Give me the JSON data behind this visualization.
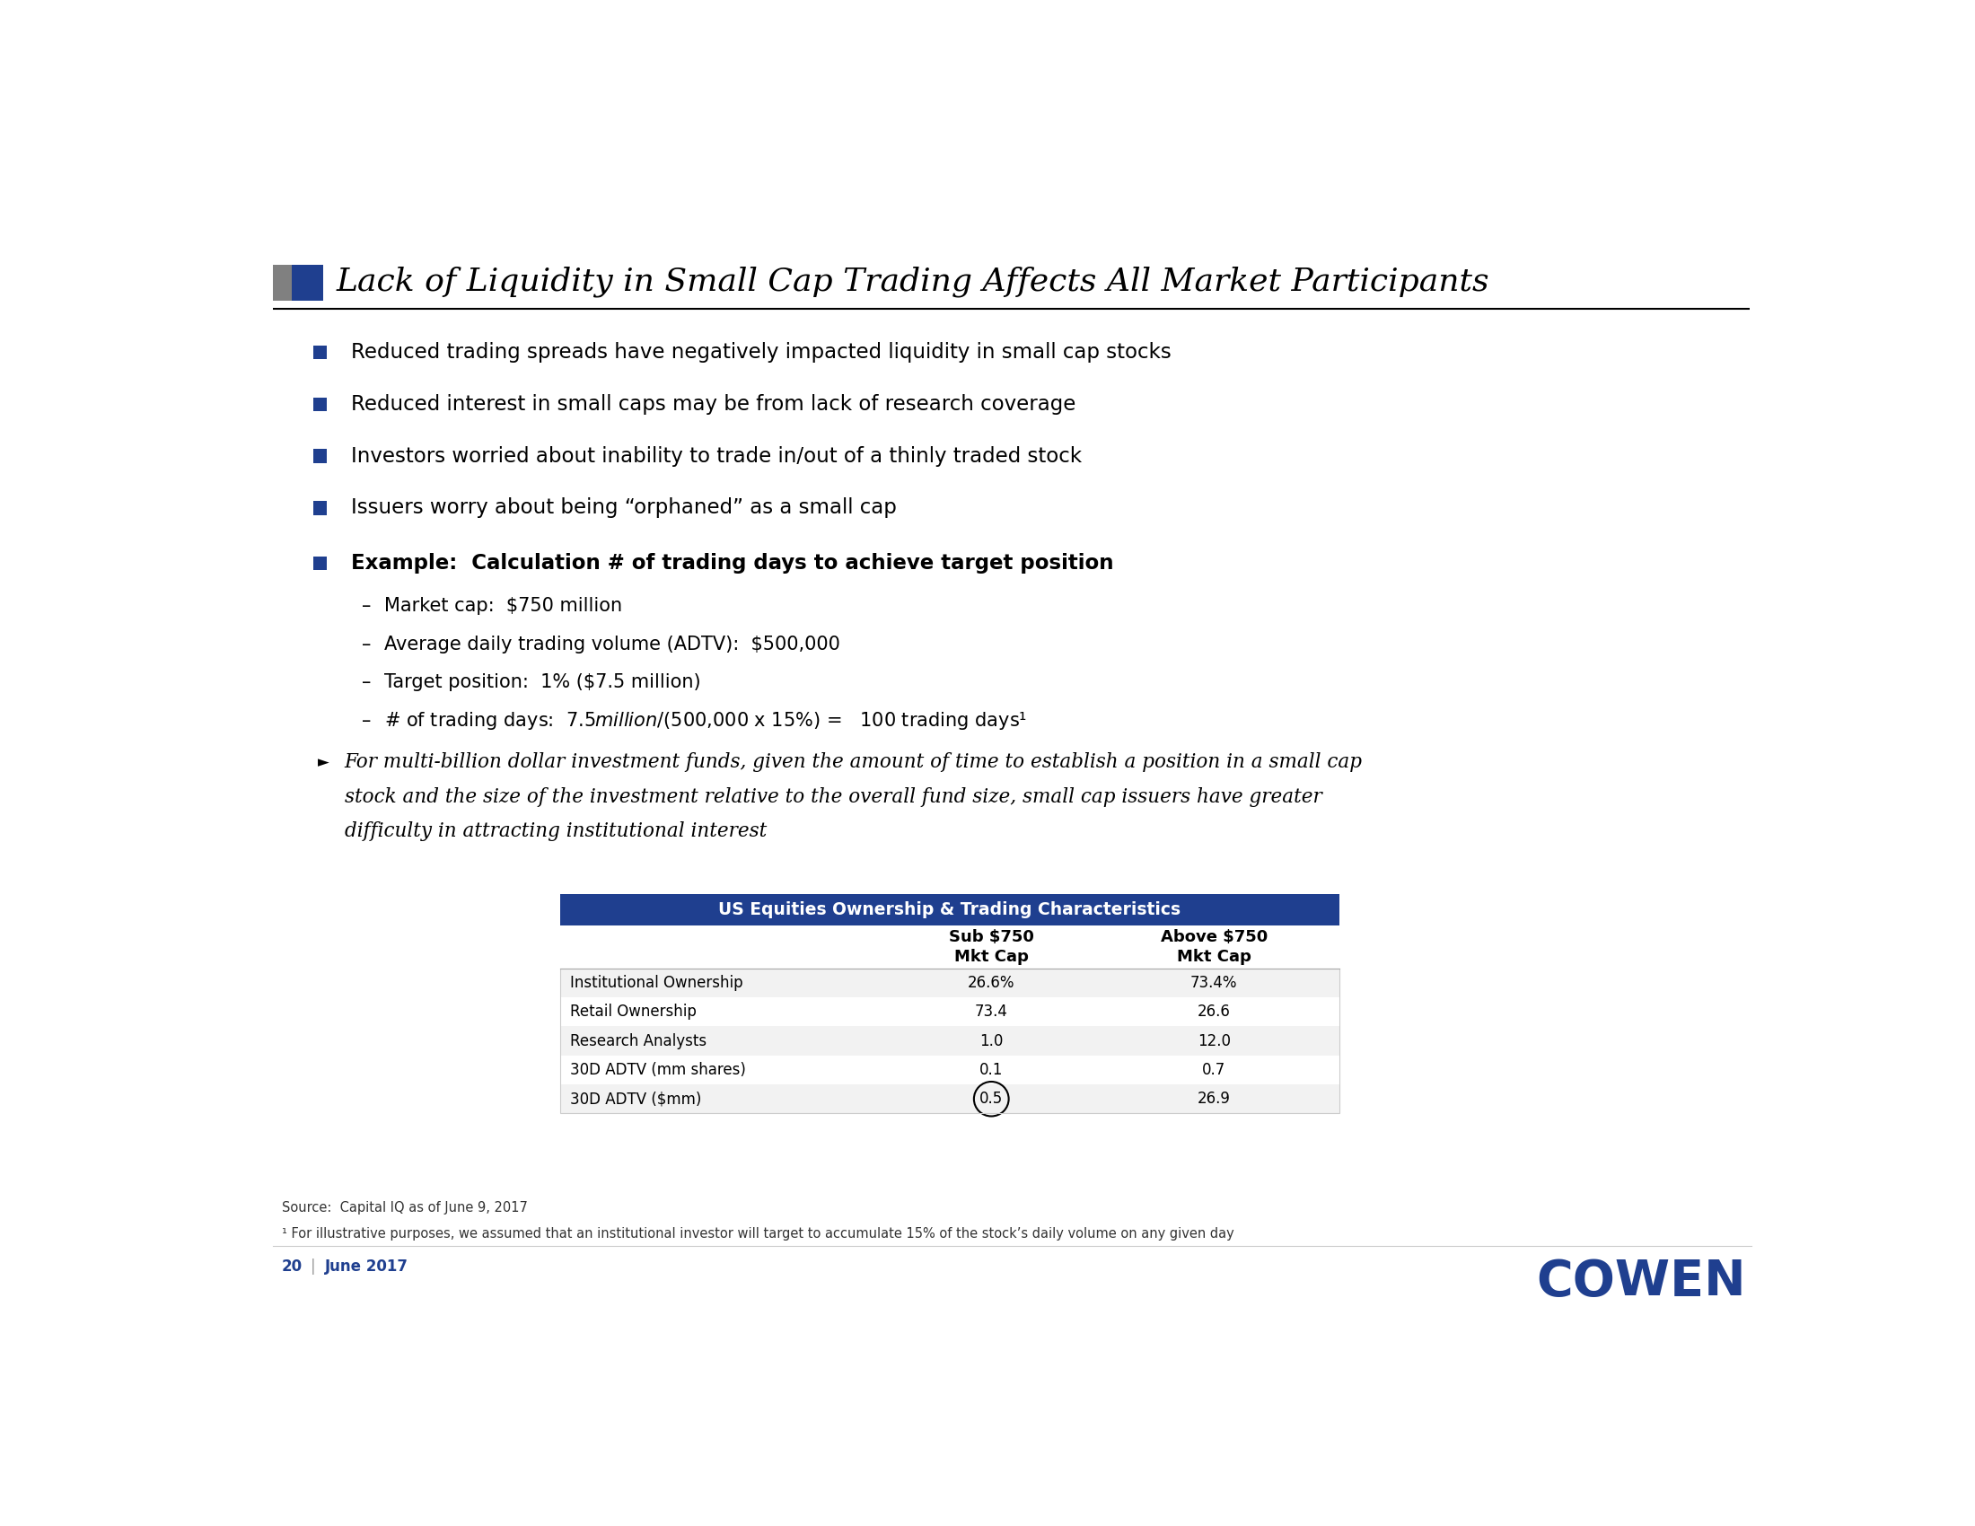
{
  "title": "Lack of Liquidity in Small Cap Trading Affects All Market Participants",
  "title_color": "#000000",
  "title_fontsize": 26,
  "header_square_gray": "#808080",
  "header_square_blue": "#1F3F8F",
  "underline_color": "#000000",
  "bullet_color": "#1F3F8F",
  "bullet_points": [
    "Reduced trading spreads have negatively impacted liquidity in small cap stocks",
    "Reduced interest in small caps may be from lack of research coverage",
    "Investors worried about inability to trade in/out of a thinly traded stock",
    "Issuers worry about being “orphaned” as a small cap"
  ],
  "bold_bullet_main": "Example:  Calculation # of trading days to achieve target position",
  "sub_bullets": [
    "Market cap:  $750 million",
    "Average daily trading volume (ADTV):  $500,000",
    "Target position:  1% ($7.5 million)",
    "# of trading days:  $7.5 million / ($500,000 x 15%) =   100 trading days¹"
  ],
  "arrow_line1": "For multi-billion dollar investment funds, given the amount of time to establish a position in a small cap",
  "arrow_line2": "stock and the size of the investment relative to the overall fund size, small cap issuers have greater",
  "arrow_line3": "difficulty in attracting institutional interest",
  "table_title": "US Equities Ownership & Trading Characteristics",
  "table_title_bg": "#1F3F8F",
  "table_title_color": "#FFFFFF",
  "table_col2_header": "Sub $750\nMkt Cap",
  "table_col3_header": "Above $750\nMkt Cap",
  "table_rows": [
    [
      "Institutional Ownership",
      "26.6%",
      "73.4%"
    ],
    [
      "Retail Ownership",
      "73.4",
      "26.6"
    ],
    [
      "Research Analysts",
      "1.0",
      "12.0"
    ],
    [
      "30D ADTV (mm shares)",
      "0.1",
      "0.7"
    ],
    [
      "30D ADTV ($mm)",
      "0.5",
      "26.9"
    ]
  ],
  "table_row_shading": [
    "#F2F2F2",
    "#FFFFFF",
    "#F2F2F2",
    "#FFFFFF",
    "#F2F2F2"
  ],
  "source_text": "Source:  Capital IQ as of June 9, 2017",
  "footnote_text": "¹ For illustrative purposes, we assumed that an institutional investor will target to accumulate 15% of the stock’s daily volume on any given day",
  "page_number": "20",
  "page_date": "June 2017",
  "page_num_color": "#1F3F8F",
  "cowen_text": "COWEN",
  "cowen_color": "#1F3F8F",
  "background_color": "#FFFFFF"
}
